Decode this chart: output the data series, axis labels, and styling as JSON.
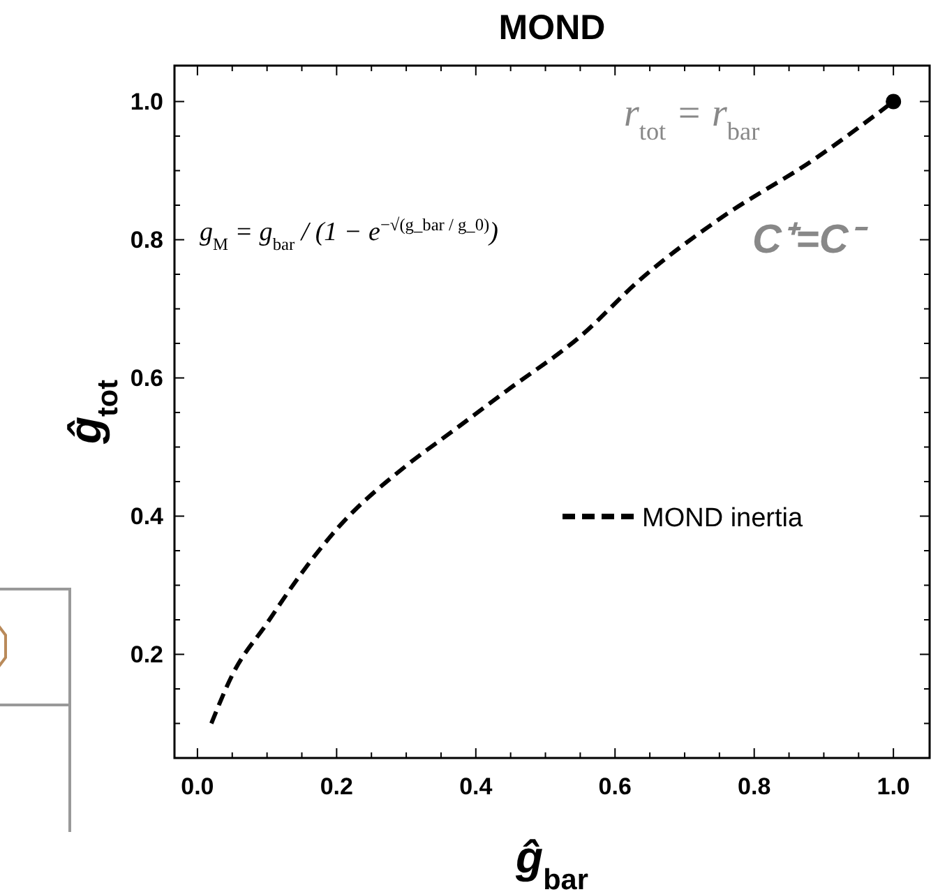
{
  "chart_data": {
    "type": "line",
    "title": "MOND",
    "xlabel": "ĝ$_{bar}$",
    "ylabel": "ĝ$_{tot}$",
    "xlim": [
      -0.033,
      1.052
    ],
    "ylim": [
      0.05,
      1.052
    ],
    "xticks": [
      {
        "value": 0,
        "label": "0.0"
      },
      {
        "value": 0.05,
        "label": null
      },
      {
        "value": 0.1,
        "label": null
      },
      {
        "value": 0.15,
        "label": null
      },
      {
        "value": 0.2,
        "label": "0.2"
      },
      {
        "value": 0.25,
        "label": null
      },
      {
        "value": 0.3,
        "label": null
      },
      {
        "value": 0.35,
        "label": null
      },
      {
        "value": 0.4,
        "label": "0.4"
      },
      {
        "value": 0.45,
        "label": null
      },
      {
        "value": 0.5,
        "label": null
      },
      {
        "value": 0.55,
        "label": null
      },
      {
        "value": 0.6,
        "label": "0.6"
      },
      {
        "value": 0.65,
        "label": null
      },
      {
        "value": 0.7,
        "label": null
      },
      {
        "value": 0.75,
        "label": null
      },
      {
        "value": 0.8,
        "label": "0.8"
      },
      {
        "value": 0.85,
        "label": null
      },
      {
        "value": 0.9,
        "label": null
      },
      {
        "value": 0.95,
        "label": null
      },
      {
        "value": 1,
        "label": "1.0"
      }
    ],
    "yticks": [
      {
        "value": 0.1,
        "label": null
      },
      {
        "value": 0.15,
        "label": null
      },
      {
        "value": 0.2,
        "label": "0.2"
      },
      {
        "value": 0.25,
        "label": null
      },
      {
        "value": 0.3,
        "label": null
      },
      {
        "value": 0.35,
        "label": null
      },
      {
        "value": 0.4,
        "label": "0.4"
      },
      {
        "value": 0.45,
        "label": null
      },
      {
        "value": 0.5,
        "label": null
      },
      {
        "value": 0.55,
        "label": null
      },
      {
        "value": 0.6,
        "label": "0.6"
      },
      {
        "value": 0.65,
        "label": null
      },
      {
        "value": 0.7,
        "label": null
      },
      {
        "value": 0.75,
        "label": null
      },
      {
        "value": 0.8,
        "label": "0.8"
      },
      {
        "value": 0.85,
        "label": null
      },
      {
        "value": 0.9,
        "label": null
      },
      {
        "value": 0.95,
        "label": null
      },
      {
        "value": 1,
        "label": "1.0"
      }
    ],
    "series": [
      {
        "name": "MOND inertia",
        "color": "#000000",
        "line_style": "dashed",
        "x": [
          0.02,
          0.05,
          0.1,
          0.15,
          0.2,
          0.3,
          0.364,
          0.445,
          0.55,
          0.638,
          0.75,
          0.887,
          1.0
        ],
        "values": [
          0.1,
          0.17,
          0.245,
          0.318,
          0.381,
          0.473,
          0.521,
          0.582,
          0.66,
          0.744,
          0.83,
          0.917,
          1.0
        ]
      },
      {
        "type": "scatter",
        "color": "#000000",
        "marker": "circle",
        "x": [
          1.0
        ],
        "values": [
          1.0
        ]
      }
    ],
    "legend": "right",
    "annotations": [
      "g$_{M}$ = g$_{bar}$ / (1 − e$^{−√(g_bar / g_0)}$)",
      "r$_{tot}$ = r$_{bar}$",
      "C⁺=C⁻"
    ]
  }
}
